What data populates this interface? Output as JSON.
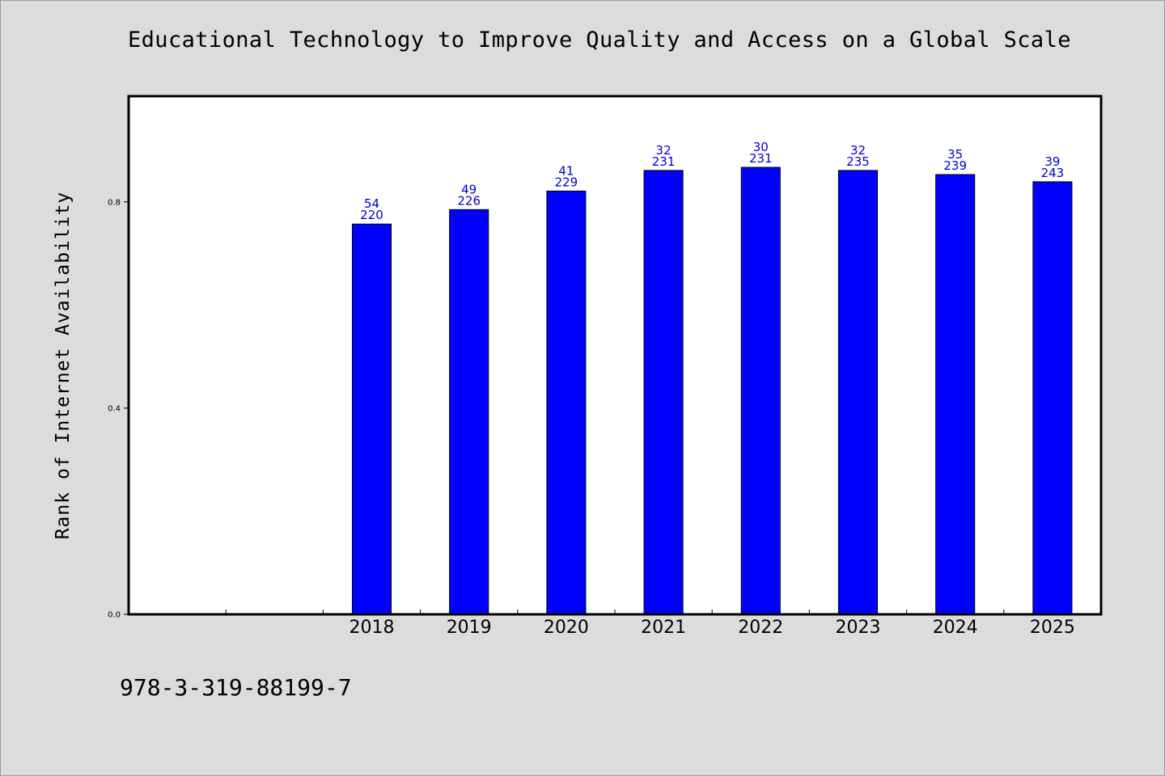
{
  "title": "Educational Technology to Improve Quality and Access on a Global Scale",
  "footer": "978-3-319-88199-7",
  "colors": {
    "background": "#dcdcdc",
    "plot_background": "#ffffff",
    "bar": "#0000ff",
    "data_label": "#0000cc"
  },
  "chart_data": {
    "type": "bar",
    "title": "Educational Technology to Improve Quality and Access on a Global Scale",
    "xlabel": "",
    "ylabel": "Rank of Internet Availability",
    "categories": [
      "",
      "",
      "2018",
      "2019",
      "2020",
      "2021",
      "2022",
      "2023",
      "2024",
      "2025"
    ],
    "values": [
      null,
      null,
      0.757,
      0.785,
      0.821,
      0.861,
      0.867,
      0.861,
      0.853,
      0.839
    ],
    "labels": [
      null,
      null,
      [
        "54",
        "220"
      ],
      [
        "49",
        "226"
      ],
      [
        "41",
        "229"
      ],
      [
        "32",
        "231"
      ],
      [
        "30",
        "231"
      ],
      [
        "32",
        "235"
      ],
      [
        "35",
        "239"
      ],
      [
        "39",
        "243"
      ]
    ],
    "ylim": [
      0,
      1.005
    ],
    "yticks": [
      {
        "value": 0.0,
        "label": "0.0"
      },
      {
        "value": 0.4,
        "label": "0.4"
      },
      {
        "value": 0.8,
        "label": "0.8"
      }
    ],
    "grid": false,
    "legend": "none"
  }
}
